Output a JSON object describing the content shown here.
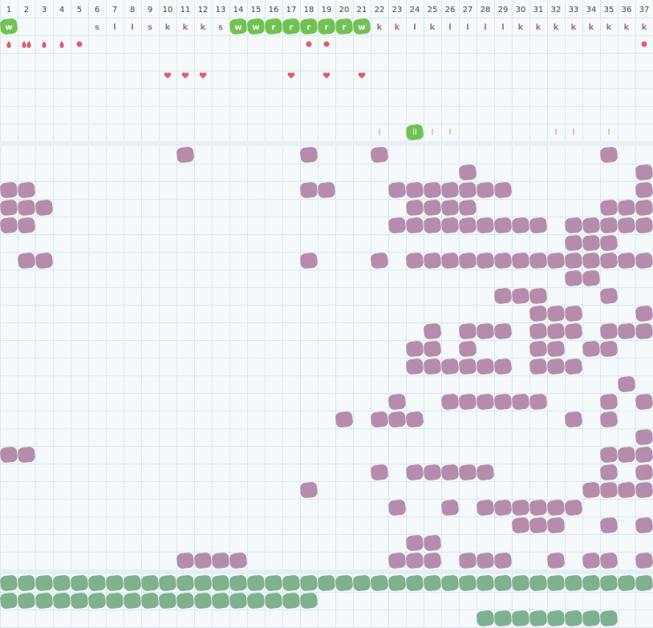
{
  "header": {
    "days": [
      1,
      2,
      3,
      4,
      5,
      6,
      7,
      8,
      9,
      10,
      11,
      12,
      13,
      14,
      15,
      16,
      17,
      18,
      19,
      20,
      21,
      22,
      23,
      24,
      25,
      26,
      27,
      28,
      29,
      30,
      31,
      32,
      33,
      34,
      35,
      36,
      37
    ]
  },
  "top": {
    "letters": [
      "w",
      null,
      null,
      null,
      null,
      "s",
      "l",
      "l",
      "s",
      "k",
      "k",
      "k",
      "s",
      "w",
      "w",
      "r",
      "r",
      "r",
      "r",
      "r",
      "w",
      "k",
      "k",
      "l",
      "k",
      "l",
      "l",
      "l",
      "l",
      "k",
      "k",
      "k",
      "k",
      "k",
      "k",
      "k",
      "k"
    ],
    "letters_highlighted": [
      1,
      14,
      15,
      16,
      17,
      18,
      19,
      20,
      21
    ],
    "markers": [
      {
        "col": 1,
        "kind": "drop"
      },
      {
        "col": 2,
        "kind": "double-drop"
      },
      {
        "col": 3,
        "kind": "drop"
      },
      {
        "col": 4,
        "kind": "drop"
      },
      {
        "col": 5,
        "kind": "dot"
      },
      {
        "col": 18,
        "kind": "dot"
      },
      {
        "col": 19,
        "kind": "dot"
      },
      {
        "col": 37,
        "kind": "dot"
      }
    ],
    "hearts": [
      10,
      11,
      12,
      17,
      19,
      21
    ],
    "ticks": [
      {
        "col": 22,
        "label": "l"
      },
      {
        "col": 24,
        "label": "ll",
        "highlighted": true
      },
      {
        "col": 25,
        "label": "l"
      },
      {
        "col": 26,
        "label": "l"
      },
      {
        "col": 32,
        "label": "l"
      },
      {
        "col": 33,
        "label": "l"
      },
      {
        "col": 35,
        "label": "l"
      }
    ]
  },
  "purple_rows": [
    [
      11,
      18,
      22,
      35
    ],
    [
      27,
      37
    ],
    [
      1,
      2,
      18,
      19,
      23,
      24,
      25,
      26,
      27,
      28,
      29,
      37
    ],
    [
      1,
      2,
      3,
      24,
      25,
      26,
      27,
      35,
      36,
      37
    ],
    [
      1,
      2,
      23,
      24,
      25,
      26,
      27,
      28,
      29,
      30,
      31,
      33,
      34,
      35,
      36,
      37
    ],
    [
      33,
      34,
      35
    ],
    [
      2,
      3,
      18,
      22,
      24,
      25,
      26,
      27,
      28,
      29,
      30,
      31,
      32,
      33,
      34,
      35,
      36,
      37
    ],
    [
      33,
      34
    ],
    [
      29,
      30,
      31,
      35
    ],
    [
      31,
      32,
      33,
      37
    ],
    [
      25,
      27,
      28,
      29,
      31,
      32,
      33,
      35,
      36,
      37
    ],
    [
      24,
      25,
      27,
      31,
      32,
      34,
      35
    ],
    [
      24,
      25,
      26,
      27,
      28,
      29,
      31,
      32,
      33
    ],
    [
      36
    ],
    [
      23,
      26,
      27,
      28,
      29,
      30,
      31,
      35,
      37
    ],
    [
      20,
      22,
      23,
      24,
      33,
      35
    ],
    [
      37
    ],
    [
      1,
      2,
      35,
      36,
      37
    ],
    [
      22,
      24,
      25,
      26,
      27,
      28,
      35,
      37
    ],
    [
      18,
      34,
      35,
      36,
      37
    ],
    [
      23,
      26,
      28,
      29,
      30,
      31,
      32,
      33
    ],
    [
      30,
      31,
      32,
      35,
      37
    ],
    [
      24,
      25
    ],
    [
      11,
      12,
      13,
      14,
      23,
      24,
      25,
      27,
      28,
      29,
      32,
      34,
      35,
      37
    ]
  ],
  "green_rows": [
    [
      1,
      2,
      3,
      4,
      5,
      6,
      7,
      8,
      9,
      10,
      11,
      12,
      13,
      14,
      15,
      16,
      17,
      18,
      19,
      20,
      21,
      22,
      23,
      24,
      25,
      26,
      27,
      28,
      29,
      30,
      31,
      32,
      33,
      34,
      35,
      36,
      37
    ],
    [
      1,
      2,
      3,
      4,
      5,
      6,
      7,
      8,
      9,
      10,
      11,
      12,
      13,
      14,
      15,
      16,
      17,
      18
    ],
    [
      28,
      29,
      30,
      31,
      32,
      33,
      34,
      35
    ]
  ]
}
